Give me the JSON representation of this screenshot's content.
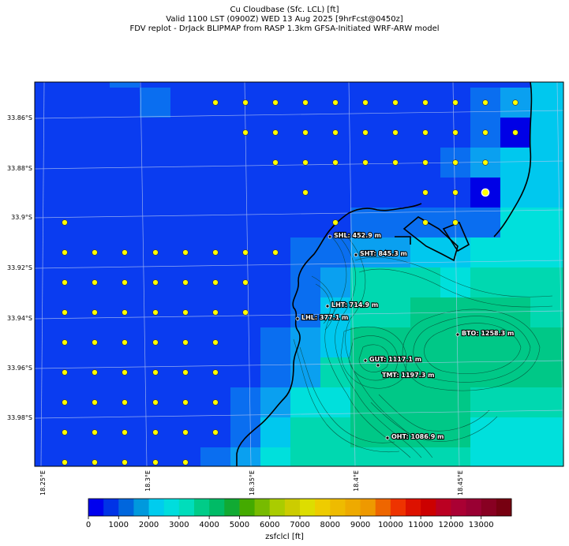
{
  "title_lines": [
    "Cu Cloudbase (Sfc. LCL) [ft]",
    "Valid 1100 LST (0900Z) WED 13 Aug 2025 [9hrFcst@0450z]",
    "FDV replot - DrJack BLIPMAP from RASP 1.3km GFSA-Initiated WRF-ARW model"
  ],
  "y_axis_labels": [
    "33.86°S",
    "33.88°S",
    "33.9°S",
    "33.92°S",
    "33.94°S",
    "33.96°S",
    "33.98°S"
  ],
  "x_axis_labels": [
    "18.25°E",
    "18.3°E",
    "18.35°E",
    "18.4°E",
    "18.45°E"
  ],
  "stations": [
    {
      "name": "SHL",
      "value": "452.9 m",
      "label": "SHL: 452.9 m"
    },
    {
      "name": "SHT",
      "value": "845.3 m",
      "label": "SHT: 845.3 m"
    },
    {
      "name": "LHT",
      "value": "714.9 m",
      "label": "LHT: 714.9 m"
    },
    {
      "name": "LHL",
      "value": "377.1 m",
      "label": "LHL: 377.1 m"
    },
    {
      "name": "BTO",
      "value": "1258.3 m",
      "label": "BTO: 1258.3 m"
    },
    {
      "name": "GUT",
      "value": "1117.1 m",
      "label": "GUT: 1117.1 m"
    },
    {
      "name": "TMT",
      "value": "1197.3 m",
      "label": "TMT: 1197.3 m"
    },
    {
      "name": "OHT",
      "value": "1086.9 m",
      "label": "OHT: 1086.9 m"
    }
  ],
  "colorbar": {
    "label": "zsfclcl [ft]",
    "ticks": [
      "0",
      "1000",
      "2000",
      "3000",
      "4000",
      "5000",
      "6000",
      "7000",
      "8000",
      "9000",
      "10000",
      "11000",
      "12000",
      "13000"
    ],
    "colors": [
      "#0000ee",
      "#0033e6",
      "#0066dd",
      "#0099dd",
      "#00ccee",
      "#00dddd",
      "#00ddbb",
      "#00cc88",
      "#00bb66",
      "#11aa33",
      "#44aa00",
      "#77bb00",
      "#aacc00",
      "#cccc00",
      "#dddd00",
      "#eecc00",
      "#eebb00",
      "#eeaa00",
      "#ee9900",
      "#ee6600",
      "#ee3300",
      "#dd1100",
      "#cc0000",
      "#bb0022",
      "#aa0033",
      "#990033",
      "#880022",
      "#770011"
    ]
  },
  "field_colors": {
    "c0": "#0a3cf0",
    "c1": "#0a6ef0",
    "c2": "#0aa0f0",
    "c3": "#00c8ee",
    "c4": "#00e0dc",
    "c5": "#00d8b0",
    "c6": "#00c887",
    "deep": "#0000e6"
  }
}
